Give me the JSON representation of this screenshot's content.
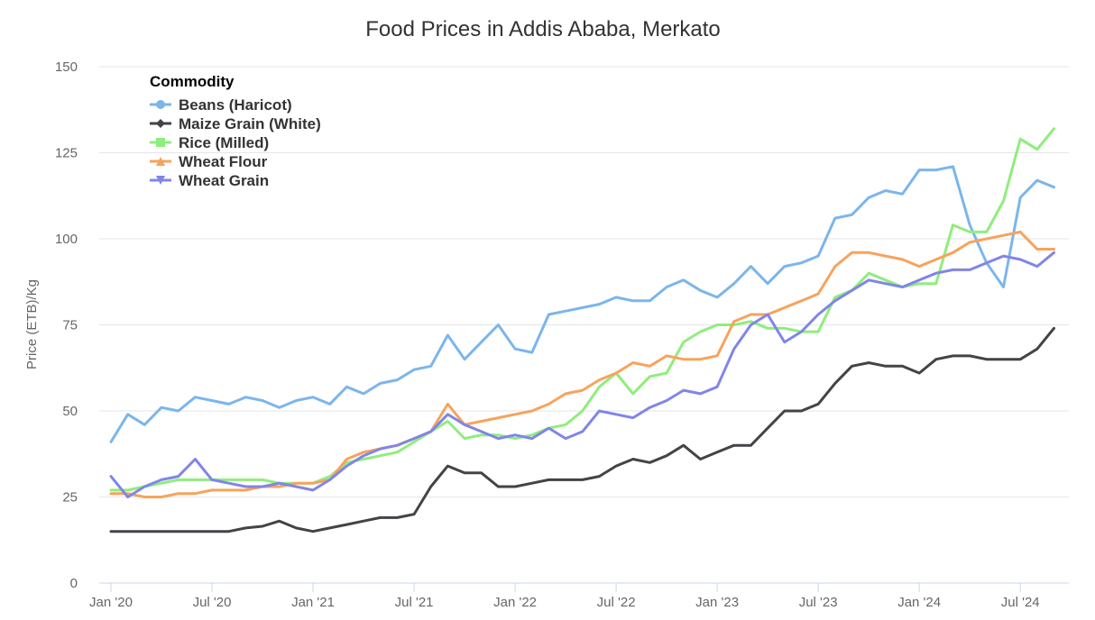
{
  "chart_data": {
    "type": "line",
    "title": "Food Prices in Addis Ababa, Merkato",
    "ylabel": "Price (ETB)/Kg",
    "xlabel": "",
    "ylim": [
      0,
      150
    ],
    "yticks": [
      "0",
      "25",
      "50",
      "75",
      "100",
      "125",
      "150"
    ],
    "xticks": [
      "Jan '20",
      "Jul '20",
      "Jan '21",
      "Jul '21",
      "Jan '22",
      "Jul '22",
      "Jan '23",
      "Jul '23",
      "Jan '24",
      "Jul '24"
    ],
    "x_start": "2020-01",
    "x_end": "2024-09",
    "x_frequency": "monthly",
    "grid": true,
    "legend": {
      "title": "Commodity",
      "placement": "top-left"
    },
    "series": [
      {
        "name": "Beans (Haricot)",
        "color": "#7cb5ec",
        "marker": "circle",
        "values": [
          41,
          49,
          46,
          51,
          50,
          54,
          53,
          52,
          54,
          53,
          51,
          53,
          54,
          52,
          57,
          55,
          58,
          59,
          62,
          63,
          72,
          65,
          70,
          75,
          68,
          67,
          78,
          79,
          80,
          81,
          83,
          82,
          82,
          86,
          88,
          85,
          83,
          87,
          92,
          87,
          92,
          93,
          95,
          106,
          107,
          112,
          114,
          113,
          120,
          120,
          121,
          104,
          93,
          86,
          112,
          117,
          115
        ]
      },
      {
        "name": "Maize Grain (White)",
        "color": "#434348",
        "marker": "diamond",
        "values": [
          15,
          15,
          15,
          15,
          15,
          15,
          15,
          15,
          16,
          16.5,
          18,
          16,
          15,
          16,
          17,
          18,
          19,
          19,
          20,
          28,
          34,
          32,
          32,
          28,
          28,
          29,
          30,
          30,
          30,
          31,
          34,
          36,
          35,
          37,
          40,
          36,
          38,
          40,
          40,
          45,
          50,
          50,
          52,
          58,
          63,
          64,
          63,
          63,
          61,
          65,
          66,
          66,
          65,
          65,
          65,
          68,
          74
        ]
      },
      {
        "name": "Rice (Milled)",
        "color": "#90ed7d",
        "marker": "square",
        "values": [
          27,
          27,
          28,
          29,
          30,
          30,
          30,
          30,
          30,
          30,
          29,
          29,
          29,
          31,
          35,
          36,
          37,
          38,
          41,
          44,
          47,
          42,
          43,
          43,
          42,
          43,
          45,
          46,
          50,
          57,
          61,
          55,
          60,
          61,
          70,
          73,
          75,
          75,
          76,
          74,
          74,
          73,
          73,
          83,
          85,
          90,
          88,
          86,
          87,
          87,
          104,
          102,
          102,
          111,
          129,
          126,
          132
        ]
      },
      {
        "name": "Wheat Flour",
        "color": "#f7a35c",
        "marker": "triangle",
        "values": [
          26,
          26,
          25,
          25,
          26,
          26,
          27,
          27,
          27,
          28,
          28,
          29,
          29,
          30,
          36,
          38,
          39,
          40,
          42,
          44,
          52,
          46,
          47,
          48,
          49,
          50,
          52,
          55,
          56,
          59,
          61,
          64,
          63,
          66,
          65,
          65,
          66,
          76,
          78,
          78,
          80,
          82,
          84,
          92,
          96,
          96,
          95,
          94,
          92,
          94,
          96,
          99,
          100,
          101,
          102,
          97,
          97
        ]
      },
      {
        "name": "Wheat Grain",
        "color": "#8085e9",
        "marker": "triangle-down",
        "values": [
          31,
          25,
          28,
          30,
          31,
          36,
          30,
          29,
          28,
          28,
          29,
          28,
          27,
          30,
          34,
          37,
          39,
          40,
          42,
          44,
          49,
          46,
          44,
          42,
          43,
          42,
          45,
          42,
          44,
          50,
          49,
          48,
          51,
          53,
          56,
          55,
          57,
          68,
          75,
          78,
          70,
          73,
          78,
          82,
          85,
          88,
          87,
          86,
          88,
          90,
          91,
          91,
          93,
          95,
          94,
          92,
          96
        ]
      }
    ]
  }
}
